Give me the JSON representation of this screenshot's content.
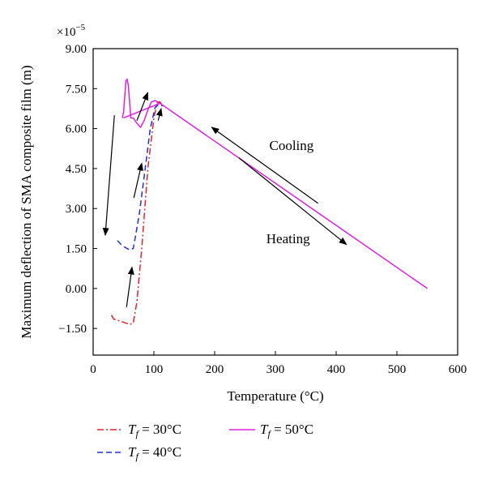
{
  "chart_data": {
    "type": "line",
    "xlabel": "Temperature (°C)",
    "ylabel": "Maximum deflection of SMA composite film (m)",
    "y_multiplier": "×10",
    "y_multiplier_exp": "−5",
    "xlim": [
      0,
      600
    ],
    "ylim": [
      -2.5,
      9.0
    ],
    "x_ticks": [
      0,
      100,
      200,
      300,
      400,
      500,
      600
    ],
    "x_tick_labels": [
      "0",
      "100",
      "200",
      "300",
      "400",
      "500",
      "600"
    ],
    "y_ticks": [
      -1.5,
      0.0,
      1.5,
      3.0,
      4.5,
      6.0,
      7.5,
      9.0
    ],
    "y_tick_labels": [
      "−1.50",
      "0.00",
      "1.50",
      "3.00",
      "4.50",
      "6.00",
      "7.50",
      "9.00"
    ],
    "grid": false,
    "legend_position": "below",
    "annotations": [
      {
        "text": "Cooling",
        "x": 290,
        "y": 5.2
      },
      {
        "text": "Heating",
        "x": 285,
        "y": 1.7
      }
    ],
    "arrows": [
      {
        "from": [
          370,
          3.2
        ],
        "to": [
          195,
          6.05
        ]
      },
      {
        "from": [
          240,
          4.9
        ],
        "to": [
          417,
          1.65
        ]
      },
      {
        "from": [
          35,
          6.5
        ],
        "to": [
          20,
          2.0
        ]
      },
      {
        "from": [
          72,
          6.3
        ],
        "to": [
          90,
          7.35
        ]
      },
      {
        "from": [
          67,
          3.4
        ],
        "to": [
          80,
          4.7
        ]
      },
      {
        "from": [
          55,
          -0.7
        ],
        "to": [
          64,
          0.8
        ]
      },
      {
        "from": [
          107,
          6.3
        ],
        "to": [
          112,
          6.75
        ]
      }
    ],
    "series": [
      {
        "name": "Tf = 30°C",
        "label_main": "T",
        "label_sub": "f",
        "label_rest": " = 30°C",
        "color": "#e0232b",
        "dash": "8,3,2,3",
        "x": [
          30,
          34,
          48,
          60,
          66,
          72,
          80,
          90,
          100,
          106,
          110,
          115
        ],
        "y": [
          -1.0,
          -1.15,
          -1.25,
          -1.35,
          -1.3,
          -0.5,
          1.5,
          4.5,
          6.4,
          7.0,
          7.0,
          6.85
        ]
      },
      {
        "name": "Tf = 40°C",
        "label_main": "T",
        "label_sub": "f",
        "label_rest": " = 40°C",
        "color": "#1f2fd6",
        "dash": "7,4",
        "x": [
          40,
          46,
          52,
          60,
          66,
          70,
          76,
          84,
          94,
          102,
          108,
          115
        ],
        "y": [
          1.8,
          1.65,
          1.55,
          1.45,
          1.5,
          2.0,
          2.8,
          4.2,
          6.0,
          6.8,
          6.9,
          6.85
        ]
      },
      {
        "name": "Tf = 50°C",
        "label_main": "T",
        "label_sub": "f",
        "label_rest": " = 50°C",
        "color": "#e020e0",
        "dash": "",
        "x": [
          48,
          50,
          52,
          54,
          56,
          58,
          62,
          66,
          72,
          78,
          84,
          90,
          96,
          102,
          110,
          550
        ],
        "y": [
          6.4,
          6.6,
          7.2,
          7.8,
          7.85,
          7.6,
          6.4,
          6.4,
          6.2,
          6.05,
          6.3,
          6.7,
          7.0,
          7.05,
          6.95,
          0.0
        ],
        "loop_x": [
          50,
          110
        ],
        "loop_y": [
          6.4,
          6.95
        ]
      }
    ]
  }
}
